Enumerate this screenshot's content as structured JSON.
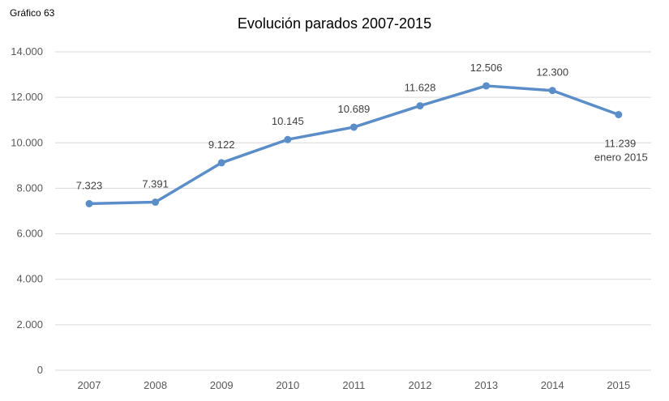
{
  "figure_label": "Gráfico 63",
  "chart_data": {
    "type": "line",
    "title": "Evolución parados 2007-2015",
    "xlabel": "",
    "ylabel": "",
    "categories": [
      "2007",
      "2008",
      "2009",
      "2010",
      "2011",
      "2012",
      "2013",
      "2014",
      "2015"
    ],
    "values": [
      7323,
      7391,
      9122,
      10145,
      10689,
      11628,
      12506,
      12300,
      11239
    ],
    "data_labels": [
      "7.323",
      "7.391",
      "9.122",
      "10.145",
      "10.689",
      "11.628",
      "12.506",
      "12.300",
      "11.239"
    ],
    "last_point_note": "enero 2015",
    "ylim": [
      0,
      14000
    ],
    "yticks": [
      0,
      2000,
      4000,
      6000,
      8000,
      10000,
      12000,
      14000
    ],
    "ytick_labels": [
      "0",
      "2.000",
      "4.000",
      "6.000",
      "8.000",
      "10.000",
      "12.000",
      "14.000"
    ],
    "grid": true,
    "legend": "none",
    "line_color": "#5B8EC9",
    "grid_color": "#D9D9D9"
  }
}
